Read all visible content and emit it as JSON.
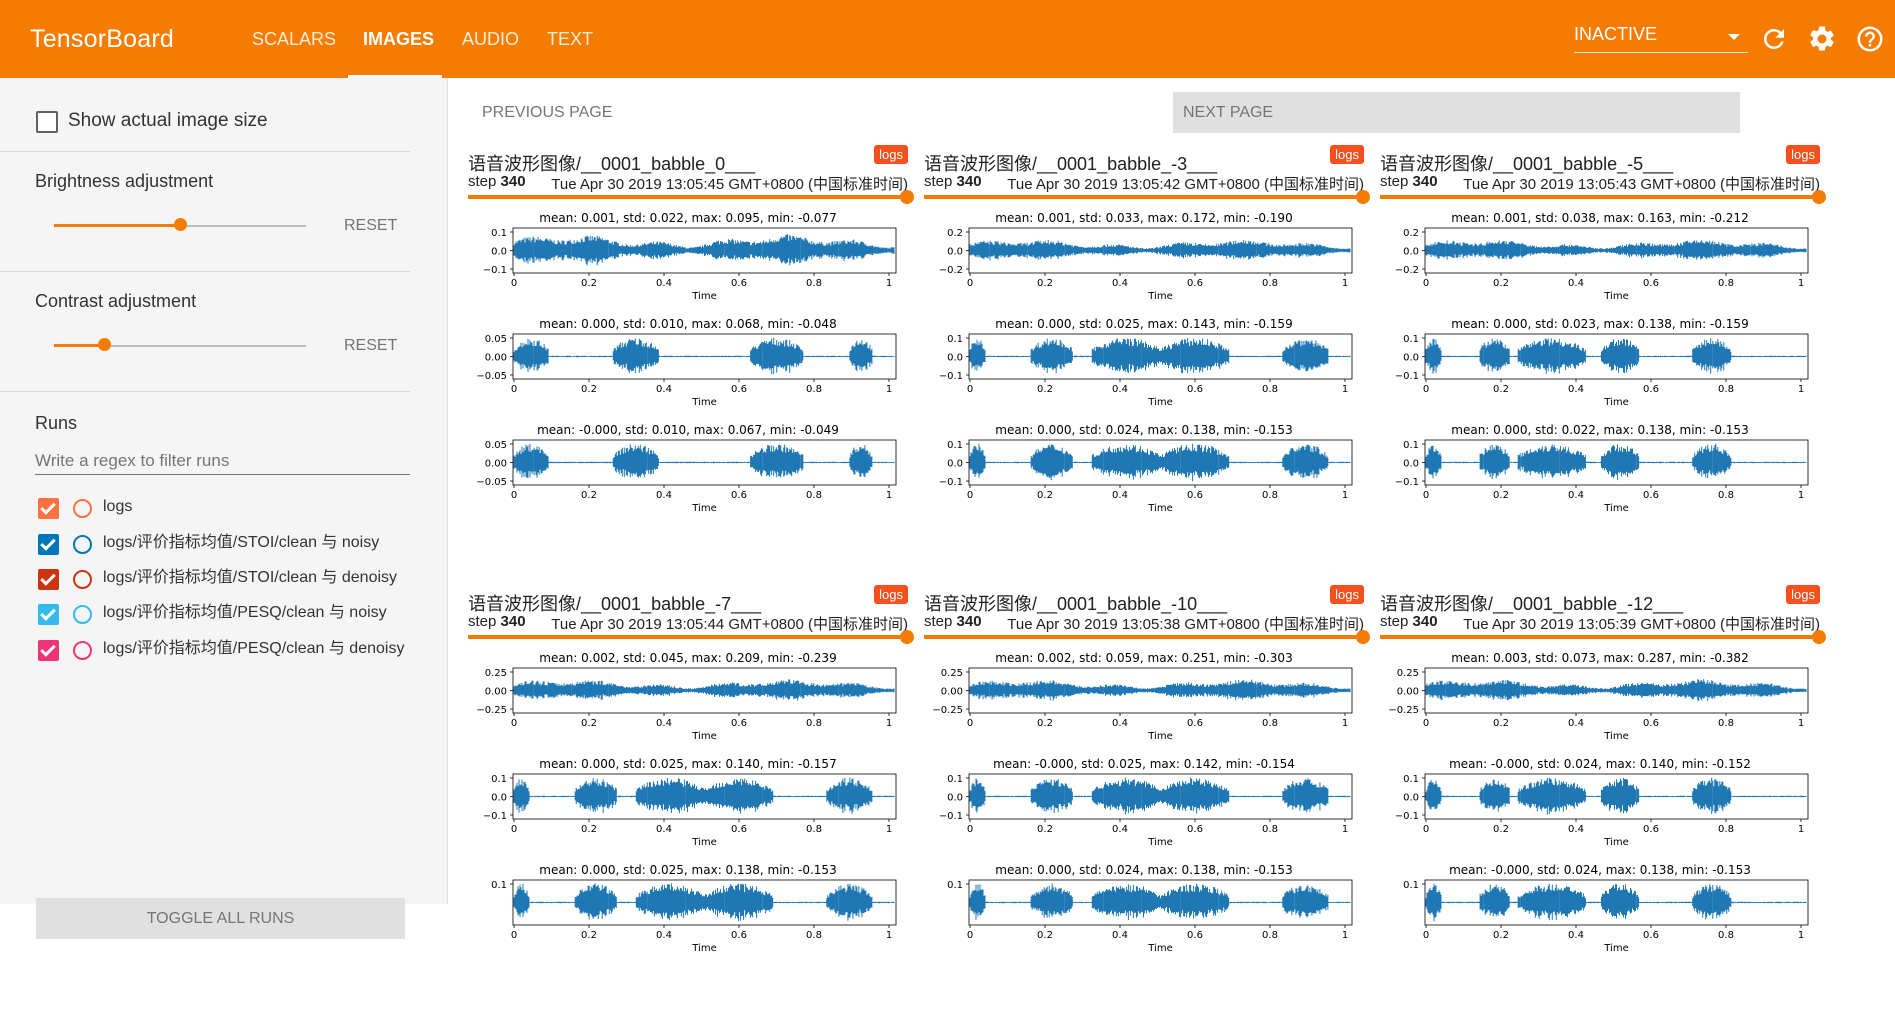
{
  "app": {
    "title": "TensorBoard",
    "tabs": [
      {
        "label": "SCALARS"
      },
      {
        "label": "IMAGES",
        "active": true
      },
      {
        "label": "AUDIO"
      },
      {
        "label": "TEXT"
      }
    ],
    "status_select": "INACTIVE",
    "icons": [
      "refresh-icon",
      "settings-icon",
      "help-icon"
    ],
    "accent_color": "#f57c00"
  },
  "sidebar": {
    "show_actual_size_label": "Show actual image size",
    "brightness": {
      "label": "Brightness adjustment",
      "reset_label": "RESET",
      "value_fraction": 0.5
    },
    "contrast": {
      "label": "Contrast adjustment",
      "reset_label": "RESET",
      "value_fraction": 0.2
    },
    "runs_title": "Runs",
    "filter_placeholder": "Write a regex to filter runs",
    "runs": [
      {
        "label": "logs",
        "color": "#ff7043"
      },
      {
        "label": "logs/评价指标均值/STOI/clean 与 noisy",
        "color": "#0077bb"
      },
      {
        "label": "logs/评价指标均值/STOI/clean 与 denoisy",
        "color": "#cc3311"
      },
      {
        "label": "logs/评价指标均值/PESQ/clean 与 noisy",
        "color": "#33bbee"
      },
      {
        "label": "logs/评价指标均值/PESQ/clean 与 denoisy",
        "color": "#ee3377"
      }
    ],
    "toggle_all_label": "TOGGLE ALL RUNS"
  },
  "pager": {
    "previous": "PREVIOUS PAGE",
    "next": "NEXT PAGE"
  },
  "cards": [
    {
      "title": "语音波形图像/__0001_babble_0___",
      "run": "logs",
      "step_label": "step",
      "step": "340",
      "date": "Tue Apr 30 2019 13:05:45 GMT+0800 (中国标准时间)",
      "plots": [
        {
          "title": "mean: 0.001, std: 0.022, max: 0.095, min: -0.077",
          "yticks": [
            "0.1",
            "0.0",
            "−0.1"
          ],
          "amp": 0.85,
          "env": "noise"
        },
        {
          "title": "mean: 0.000, std: 0.010, max: 0.068, min: -0.048",
          "yticks": [
            "0.05",
            "0.00",
            "−0.05"
          ],
          "amp": 0.85,
          "env": "speech"
        },
        {
          "title": "mean: -0.000, std: 0.010, max: 0.067, min: -0.049",
          "yticks": [
            "0.05",
            "0.00",
            "−0.05"
          ],
          "amp": 0.85,
          "env": "speech"
        }
      ]
    },
    {
      "title": "语音波形图像/__0001_babble_-3___",
      "run": "logs",
      "step_label": "step",
      "step": "340",
      "date": "Tue Apr 30 2019 13:05:42 GMT+0800 (中国标准时间)",
      "plots": [
        {
          "title": "mean: 0.001, std: 0.033, max: 0.172, min: -0.190",
          "yticks": [
            "0.2",
            "0.0",
            "−0.2"
          ],
          "amp": 0.6,
          "env": "noisy"
        },
        {
          "title": "mean: 0.000, std: 0.025, max: 0.143, min: -0.159",
          "yticks": [
            "0.1",
            "0.0",
            "−0.1"
          ],
          "amp": 0.85,
          "env": "speech2"
        },
        {
          "title": "mean: 0.000, std: 0.024, max: 0.138, min: -0.153",
          "yticks": [
            "0.1",
            "0.0",
            "−0.1"
          ],
          "amp": 0.85,
          "env": "speech2"
        }
      ]
    },
    {
      "title": "语音波形图像/__0001_babble_-5___",
      "run": "logs",
      "step_label": "step",
      "step": "340",
      "date": "Tue Apr 30 2019 13:05:43 GMT+0800 (中国标准时间)",
      "plots": [
        {
          "title": "mean: 0.001, std: 0.038, max: 0.163, min: -0.212",
          "yticks": [
            "0.2",
            "0.0",
            "−0.2"
          ],
          "amp": 0.6,
          "env": "noisy"
        },
        {
          "title": "mean: 0.000, std: 0.023, max: 0.138, min: -0.159",
          "yticks": [
            "0.1",
            "0.0",
            "−0.1"
          ],
          "amp": 0.85,
          "env": "speech3"
        },
        {
          "title": "mean: 0.000, std: 0.022, max: 0.138, min: -0.153",
          "yticks": [
            "0.1",
            "0.0",
            "−0.1"
          ],
          "amp": 0.85,
          "env": "speech3"
        }
      ]
    },
    {
      "title": "语音波形图像/__0001_babble_-7___",
      "run": "logs",
      "step_label": "step",
      "step": "340",
      "date": "Tue Apr 30 2019 13:05:44 GMT+0800 (中国标准时间)",
      "plots": [
        {
          "title": "mean: 0.002, std: 0.045, max: 0.209, min: -0.239",
          "yticks": [
            "0.25",
            "0.00",
            "−0.25"
          ],
          "amp": 0.6,
          "env": "noisy"
        },
        {
          "title": "mean: 0.000, std: 0.025, max: 0.140, min: -0.157",
          "yticks": [
            "0.1",
            "0.0",
            "−0.1"
          ],
          "amp": 0.85,
          "env": "speech2"
        },
        {
          "title": "mean: 0.000, std: 0.025, max: 0.138, min: -0.153",
          "yticks": [
            "0.1"
          ],
          "amp": 0.85,
          "env": "speech2"
        }
      ]
    },
    {
      "title": "语音波形图像/__0001_babble_-10___",
      "run": "logs",
      "step_label": "step",
      "step": "340",
      "date": "Tue Apr 30 2019 13:05:38 GMT+0800 (中国标准时间)",
      "plots": [
        {
          "title": "mean: 0.002, std: 0.059, max: 0.251, min: -0.303",
          "yticks": [
            "0.25",
            "0.00",
            "−0.25"
          ],
          "amp": 0.6,
          "env": "noisy"
        },
        {
          "title": "mean: -0.000, std: 0.025, max: 0.142, min: -0.154",
          "yticks": [
            "0.1",
            "0.0",
            "−0.1"
          ],
          "amp": 0.85,
          "env": "speech2"
        },
        {
          "title": "mean: 0.000, std: 0.024, max: 0.138, min: -0.153",
          "yticks": [
            "0.1"
          ],
          "amp": 0.85,
          "env": "speech2"
        }
      ]
    },
    {
      "title": "语音波形图像/__0001_babble_-12___",
      "run": "logs",
      "step_label": "step",
      "step": "340",
      "date": "Tue Apr 30 2019 13:05:39 GMT+0800 (中国标准时间)",
      "plots": [
        {
          "title": "mean: 0.003, std: 0.073, max: 0.287, min: -0.382",
          "yticks": [
            "0.25",
            "0.00",
            "−0.25"
          ],
          "amp": 0.6,
          "env": "noisy"
        },
        {
          "title": "mean: -0.000, std: 0.024, max: 0.140, min: -0.152",
          "yticks": [
            "0.1",
            "0.0",
            "−0.1"
          ],
          "amp": 0.85,
          "env": "speech3"
        },
        {
          "title": "mean: -0.000, std: 0.024, max: 0.138, min: -0.153",
          "yticks": [
            "0.1"
          ],
          "amp": 0.85,
          "env": "speech3"
        }
      ]
    }
  ],
  "plot_axis": {
    "xlabel": "Time",
    "xticks": [
      "0",
      "0.2",
      "0.4",
      "0.6",
      "0.8",
      "1"
    ]
  }
}
